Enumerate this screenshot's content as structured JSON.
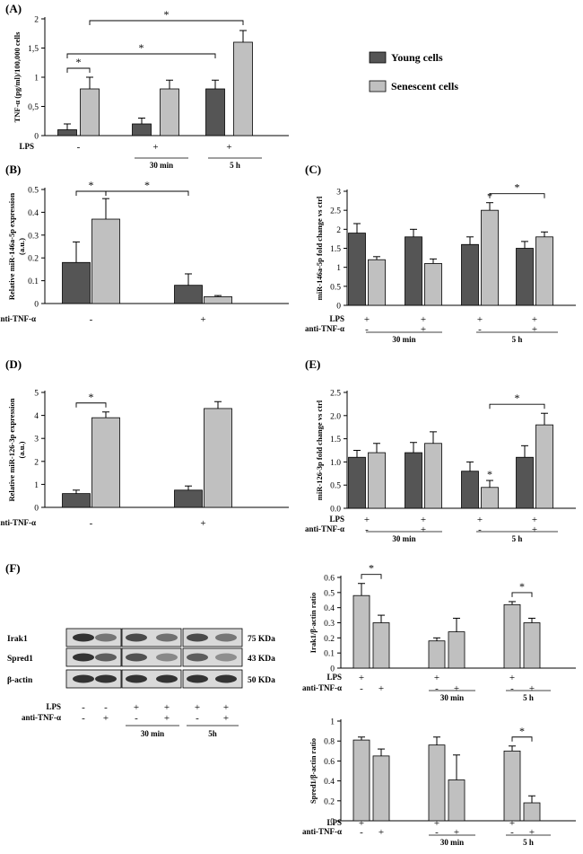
{
  "legend": {
    "young": "Young cells",
    "senescent": "Senescent cells"
  },
  "colors": {
    "young": "#555555",
    "senescent": "#c0c0c0",
    "axis": "#000000",
    "blot_bg": "#d9d9d9",
    "blot_band": "#2a2a2a"
  },
  "chart_data": [
    {
      "id": "A",
      "panel_label": "(A)",
      "type": "bar",
      "ylabel": "TNF-α (pg/ml)/100,000 cells",
      "ylim": [
        0,
        2
      ],
      "yticks": [
        0,
        0.5,
        1,
        1.5,
        2
      ],
      "ytick_labels": [
        "0",
        "0,5",
        "1",
        "1,5",
        "2"
      ],
      "categories": [
        "no LPS",
        "LPS 30 min",
        "LPS 5 h"
      ],
      "series": [
        {
          "name": "Young cells",
          "values": [
            0.1,
            0.2,
            0.8
          ],
          "errors": [
            0.1,
            0.1,
            0.15
          ]
        },
        {
          "name": "Senescent cells",
          "values": [
            0.8,
            0.8,
            1.6
          ],
          "errors": [
            0.2,
            0.15,
            0.2
          ]
        }
      ],
      "condition_rows": [
        {
          "label": "LPS",
          "symbols": [
            "-",
            "+",
            "+"
          ]
        }
      ],
      "group_labels": [
        "",
        "30 min",
        "5 h"
      ],
      "significance": [
        {
          "from": "0:0",
          "to": "0:1",
          "label": "*"
        },
        {
          "from": "0:0",
          "to": "2:0",
          "label": "*"
        },
        {
          "from": "0:1",
          "to": "2:1",
          "label": "*"
        }
      ]
    },
    {
      "id": "B",
      "panel_label": "(B)",
      "type": "bar",
      "ylabel": "Relative miR-146a-5p expression (a.u.)",
      "ylim": [
        0,
        0.5
      ],
      "yticks": [
        0,
        0.1,
        0.2,
        0.3,
        0.4,
        0.5
      ],
      "ytick_labels": [
        "0",
        "0.1",
        "0.2",
        "0.3",
        "0.4",
        "0.5"
      ],
      "categories": [
        "-",
        "+"
      ],
      "series": [
        {
          "name": "Young cells",
          "values": [
            0.18,
            0.08
          ],
          "errors": [
            0.09,
            0.05
          ]
        },
        {
          "name": "Senescent cells",
          "values": [
            0.37,
            0.03
          ],
          "errors": [
            0.09,
            0.005
          ]
        }
      ],
      "condition_rows": [
        {
          "label": "anti-TNF-α",
          "symbols": [
            "-",
            "+"
          ]
        }
      ],
      "group_labels": [],
      "significance": [
        {
          "from": "0:0",
          "to": "0:1",
          "label": "*"
        },
        {
          "from": "0:1",
          "to": "1:0",
          "label": "*"
        }
      ]
    },
    {
      "id": "C",
      "panel_label": "(C)",
      "type": "bar",
      "ylabel": "miR-146a-5p fold change vs ctrl",
      "ylim": [
        0,
        3
      ],
      "yticks": [
        0,
        0.5,
        1,
        1.5,
        2,
        2.5,
        3
      ],
      "ytick_labels": [
        "0",
        "0.5",
        "1",
        "1.5",
        "2",
        "2.5",
        "3"
      ],
      "categories": [
        "LPS 30 min",
        "LPS+anti-TNF-α 30 min",
        "LPS 5 h",
        "LPS+anti-TNF-α 5 h"
      ],
      "series": [
        {
          "name": "Young cells",
          "values": [
            1.9,
            1.8,
            1.6,
            1.5
          ],
          "errors": [
            0.25,
            0.2,
            0.2,
            0.18
          ]
        },
        {
          "name": "Senescent cells",
          "values": [
            1.2,
            1.1,
            2.5,
            1.8
          ],
          "errors": [
            0.08,
            0.12,
            0.2,
            0.13
          ]
        }
      ],
      "condition_rows": [
        {
          "label": "LPS",
          "symbols": [
            "+",
            "+",
            "+",
            "+"
          ]
        },
        {
          "label": "anti-TNF-α",
          "symbols": [
            "-",
            "+",
            "-",
            "+"
          ]
        }
      ],
      "group_labels": [
        "30 min",
        "5 h"
      ],
      "significance": [
        {
          "over": "2:1",
          "label": "*"
        },
        {
          "from": "2:1",
          "to": "3:1",
          "label": "*"
        }
      ]
    },
    {
      "id": "D",
      "panel_label": "(D)",
      "type": "bar",
      "ylabel": "Relative miR-126-3p expression (a.u.)",
      "ylim": [
        0,
        5
      ],
      "yticks": [
        0,
        1,
        2,
        3,
        4,
        5
      ],
      "ytick_labels": [
        "0",
        "1",
        "2",
        "3",
        "4",
        "5"
      ],
      "categories": [
        "-",
        "+"
      ],
      "series": [
        {
          "name": "Young cells",
          "values": [
            0.6,
            0.75
          ],
          "errors": [
            0.15,
            0.18
          ]
        },
        {
          "name": "Senescent cells",
          "values": [
            3.9,
            4.3
          ],
          "errors": [
            0.25,
            0.3
          ]
        }
      ],
      "condition_rows": [
        {
          "label": "anti-TNF-α",
          "symbols": [
            "-",
            "+"
          ]
        }
      ],
      "group_labels": [],
      "significance": [
        {
          "from": "0:0",
          "to": "0:1",
          "label": "*"
        }
      ]
    },
    {
      "id": "E",
      "panel_label": "(E)",
      "type": "bar",
      "ylabel": "miR-126-3p fold change vs ctrl",
      "ylim": [
        0,
        2.5
      ],
      "yticks": [
        0,
        0.5,
        1,
        1.5,
        2,
        2.5
      ],
      "ytick_labels": [
        "0.0",
        "0.5",
        "1.0",
        "1.5",
        "2.0",
        "2.5"
      ],
      "categories": [
        "LPS 30 min",
        "LPS+anti-TNF-α 30 min",
        "LPS 5 h",
        "LPS+anti-TNF-α 5 h"
      ],
      "series": [
        {
          "name": "Young cells",
          "values": [
            1.1,
            1.2,
            0.8,
            1.1
          ],
          "errors": [
            0.15,
            0.22,
            0.2,
            0.25
          ]
        },
        {
          "name": "Senescent cells",
          "values": [
            1.2,
            1.4,
            0.45,
            1.8
          ],
          "errors": [
            0.2,
            0.25,
            0.15,
            0.25
          ]
        }
      ],
      "condition_rows": [
        {
          "label": "LPS",
          "symbols": [
            "+",
            "+",
            "+",
            "+"
          ]
        },
        {
          "label": "anti-TNF-α",
          "symbols": [
            "-",
            "+",
            "-",
            "+"
          ]
        }
      ],
      "group_labels": [
        "30 min",
        "5 h"
      ],
      "significance": [
        {
          "over": "2:1",
          "label": "*"
        },
        {
          "from": "2:1",
          "to": "3:1",
          "label": "*"
        }
      ]
    },
    {
      "id": "F1",
      "panel_label": "",
      "type": "bar",
      "ylabel": "Irak1/β-actin ratio",
      "ylim": [
        0,
        0.6
      ],
      "yticks": [
        0,
        0.1,
        0.2,
        0.3,
        0.4,
        0.5,
        0.6
      ],
      "ytick_labels": [
        "0",
        "0.1",
        "0.2",
        "0.3",
        "0.4",
        "0.5",
        "0.6"
      ],
      "categories": [
        "LPS",
        "LPS+anti-TNF-α",
        "30 min -",
        "30 min +",
        "5 h -",
        "5 h +"
      ],
      "series": [
        {
          "name": "Senescent cells",
          "values": [
            0.48,
            0.3,
            0.18,
            0.24,
            0.42,
            0.3
          ],
          "errors": [
            0.08,
            0.05,
            0.02,
            0.09,
            0.02,
            0.03
          ]
        }
      ],
      "condition_rows": [
        {
          "label": "LPS",
          "symbols": [
            "+",
            "",
            "+",
            "",
            "+",
            ""
          ]
        },
        {
          "label": "anti-TNF-α",
          "symbols": [
            "-",
            "+",
            "-",
            "+",
            "-",
            "+"
          ]
        }
      ],
      "group_labels": [
        "",
        "30 min",
        "5 h"
      ],
      "significance": [
        {
          "from": "0",
          "to": "1",
          "label": "*"
        },
        {
          "from": "4",
          "to": "5",
          "label": "*"
        }
      ]
    },
    {
      "id": "F2",
      "panel_label": "",
      "type": "bar",
      "ylabel": "Spred1/β-actin ratio",
      "ylim": [
        0,
        1
      ],
      "yticks": [
        0,
        0.2,
        0.4,
        0.6,
        0.8,
        1
      ],
      "ytick_labels": [
        "0",
        "0.2",
        "0.4",
        "0.6",
        "0.8",
        "1"
      ],
      "categories": [
        "LPS",
        "LPS+anti-TNF-α",
        "30 min -",
        "30 min +",
        "5 h -",
        "5 h +"
      ],
      "series": [
        {
          "name": "Senescent cells",
          "values": [
            0.81,
            0.65,
            0.76,
            0.41,
            0.7,
            0.18
          ],
          "errors": [
            0.03,
            0.07,
            0.08,
            0.25,
            0.05,
            0.07
          ]
        }
      ],
      "condition_rows": [
        {
          "label": "LPS",
          "symbols": [
            "+",
            "",
            "+",
            "",
            "+",
            ""
          ]
        },
        {
          "label": "anti-TNF-α",
          "symbols": [
            "-",
            "+",
            "-",
            "+",
            "-",
            "+"
          ]
        }
      ],
      "group_labels": [
        "",
        "30 min",
        "5 h"
      ],
      "significance": [
        {
          "from": "4",
          "to": "5",
          "label": "*"
        }
      ]
    }
  ],
  "blot": {
    "panel_label": "(F)",
    "rows": [
      "Irak1",
      "Spred1",
      "β-actin"
    ],
    "kda": [
      "75 KDa",
      "43 KDa",
      "50 KDa"
    ],
    "lps": [
      "-",
      "-",
      "+",
      "+",
      "+",
      "+"
    ],
    "anti_tnf": [
      "-",
      "+",
      "-",
      "+",
      "-",
      "+"
    ],
    "row_labels": {
      "lps": "LPS",
      "anti_tnf": "anti-TNF-α"
    },
    "time_labels": [
      "30 min",
      "5h"
    ]
  }
}
